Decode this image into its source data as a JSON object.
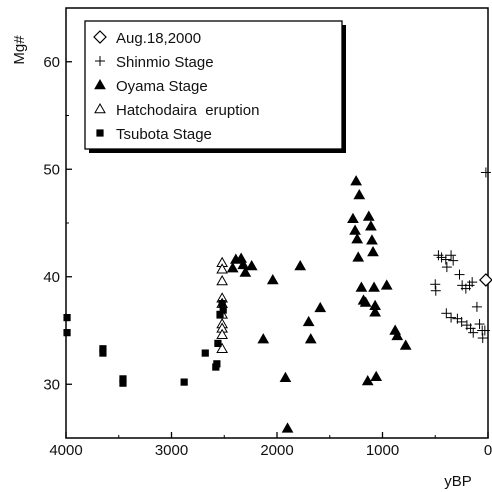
{
  "chart_data": {
    "type": "scatter",
    "title": "",
    "xlabel": "yBP",
    "ylabel": "Mg#",
    "xlim": [
      4000,
      0
    ],
    "ylim": [
      25,
      65
    ],
    "xticks": [
      4000,
      3000,
      2000,
      1000,
      0
    ],
    "yticks": [
      30,
      40,
      50,
      60
    ],
    "grid": false,
    "legend_position": "top-left",
    "series": [
      {
        "name": "Aug.18,2000",
        "marker": "diamond-open",
        "points": [
          [
            20,
            39.7
          ]
        ]
      },
      {
        "name": "Shinmio Stage",
        "marker": "plus",
        "points": [
          [
            500,
            39.3
          ],
          [
            495,
            38.7
          ],
          [
            470,
            42
          ],
          [
            440,
            41.8
          ],
          [
            400,
            41.6
          ],
          [
            390,
            40.9
          ],
          [
            350,
            42
          ],
          [
            330,
            41.5
          ],
          [
            270,
            40.2
          ],
          [
            245,
            39.2
          ],
          [
            210,
            38.9
          ],
          [
            175,
            39.2
          ],
          [
            150,
            39.5
          ],
          [
            395,
            36.6
          ],
          [
            350,
            36.2
          ],
          [
            290,
            36.1
          ],
          [
            250,
            35.8
          ],
          [
            200,
            35.5
          ],
          [
            165,
            35.2
          ],
          [
            140,
            34.8
          ],
          [
            105,
            37.2
          ],
          [
            80,
            35.6
          ],
          [
            55,
            35
          ],
          [
            50,
            34.3
          ],
          [
            30,
            35
          ],
          [
            20,
            49.7
          ]
        ]
      },
      {
        "name": "Oyama Stage",
        "marker": "triangle-filled",
        "points": [
          [
            2420,
            40.8
          ],
          [
            2390,
            41.6
          ],
          [
            2340,
            41.7
          ],
          [
            2320,
            41.1
          ],
          [
            2300,
            40.4
          ],
          [
            2240,
            41
          ],
          [
            2130,
            34.2
          ],
          [
            2040,
            39.7
          ],
          [
            1920,
            30.6
          ],
          [
            1900,
            25.9
          ],
          [
            1780,
            41
          ],
          [
            1700,
            35.8
          ],
          [
            1680,
            34.2
          ],
          [
            1590,
            37.1
          ],
          [
            1280,
            45.4
          ],
          [
            1260,
            44.3
          ],
          [
            1250,
            48.9
          ],
          [
            1240,
            43.5
          ],
          [
            1230,
            41.8
          ],
          [
            1220,
            47.6
          ],
          [
            1200,
            39
          ],
          [
            1180,
            37.8
          ],
          [
            1160,
            37.6
          ],
          [
            1140,
            30.3
          ],
          [
            1130,
            45.6
          ],
          [
            1110,
            44.7
          ],
          [
            1100,
            43.4
          ],
          [
            1090,
            42.3
          ],
          [
            1080,
            39
          ],
          [
            1070,
            37.3
          ],
          [
            1070,
            36.7
          ],
          [
            1060,
            30.7
          ],
          [
            960,
            39.2
          ],
          [
            880,
            35
          ],
          [
            860,
            34.5
          ],
          [
            780,
            33.6
          ]
        ]
      },
      {
        "name": "Hatchodaira  eruption",
        "marker": "triangle-open",
        "points": [
          [
            2520,
            41.3
          ],
          [
            2520,
            40.7
          ],
          [
            2520,
            39.6
          ],
          [
            2520,
            38
          ],
          [
            2520,
            37.5
          ],
          [
            2520,
            36.5
          ],
          [
            2520,
            35.6
          ],
          [
            2520,
            35.2
          ],
          [
            2520,
            34.6
          ],
          [
            2520,
            33.3
          ]
        ]
      },
      {
        "name": "Tsubota Stage",
        "marker": "square-filled",
        "points": [
          [
            3990,
            36.2
          ],
          [
            3990,
            34.8
          ],
          [
            3650,
            33.3
          ],
          [
            3650,
            32.9
          ],
          [
            3460,
            30.5
          ],
          [
            3460,
            30.1
          ],
          [
            2880,
            30.2
          ],
          [
            2680,
            32.9
          ],
          [
            2580,
            31.6
          ],
          [
            2570,
            31.9
          ],
          [
            2560,
            33.8
          ],
          [
            2540,
            36.5
          ],
          [
            2520,
            37.5
          ],
          [
            2510,
            36.9
          ]
        ]
      }
    ]
  }
}
